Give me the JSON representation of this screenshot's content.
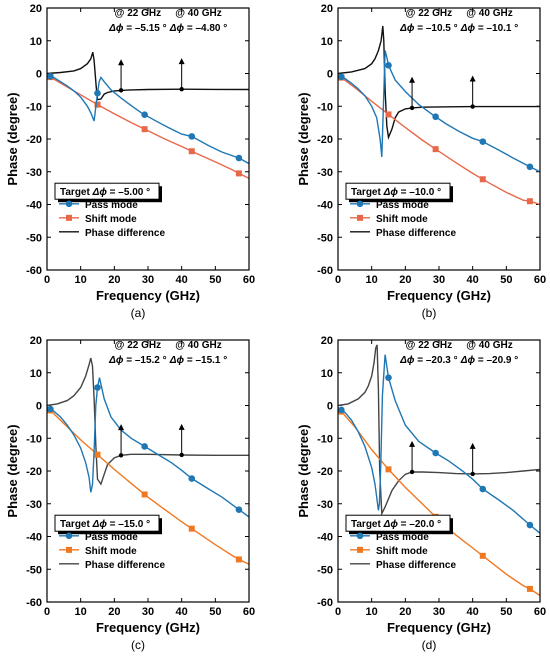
{
  "chart_data": [
    {
      "type": "line",
      "panel_label": "(a)",
      "xlabel": "Frequency (GHz)",
      "ylabel": "Phase (degree)",
      "xlim": [
        0,
        60
      ],
      "ylim": [
        -60,
        20
      ],
      "xticks": [
        0,
        10,
        20,
        30,
        40,
        50,
        60
      ],
      "yticks": [
        20,
        10,
        0,
        -10,
        -20,
        -30,
        -40,
        -50,
        -60
      ],
      "target_prefix": "Target ",
      "target_symbol": "Δϕ",
      "target_value": " = –5.00 °",
      "legend": [
        "Pass mode",
        "Shift mode",
        "Phase difference"
      ],
      "annotations": [
        {
          "freq_label": "@ 22 GHz",
          "symbol": "Δϕ",
          "value": " = –5.15 °",
          "x": 22,
          "y": -5.15
        },
        {
          "freq_label": "@ 40 GHz",
          "symbol": "Δϕ",
          "value": " = –4.80 °",
          "x": 40,
          "y": -4.8
        }
      ],
      "colors": {
        "pass": "#1f77b4",
        "shift": "#e8684a",
        "diff": "#111111"
      },
      "series": [
        {
          "name": "Pass mode",
          "x": [
            0,
            2,
            4,
            6,
            8,
            10,
            12,
            13,
            14,
            15,
            15.5,
            16,
            17,
            19,
            22,
            25,
            28,
            32,
            36,
            40,
            43,
            48,
            52,
            57,
            60
          ],
          "y": [
            -0.5,
            -1.2,
            -2.5,
            -3.8,
            -5.3,
            -7.2,
            -10,
            -12,
            -14.5,
            -6,
            -2.5,
            -1.2,
            -2.5,
            -5,
            -7.5,
            -9.8,
            -12,
            -14.3,
            -16.5,
            -18.5,
            -19.2,
            -22,
            -24,
            -25.8,
            -27.5
          ],
          "markers_x": [
            1,
            15,
            29,
            43,
            57
          ]
        },
        {
          "name": "Shift mode",
          "x": [
            0,
            5,
            10,
            15,
            20,
            25,
            30,
            35,
            40,
            45,
            50,
            55,
            57,
            60
          ],
          "y": [
            -0.5,
            -3.5,
            -6.5,
            -9.5,
            -12.3,
            -15,
            -17.5,
            -20,
            -22.3,
            -24.7,
            -27,
            -29.4,
            -30.5,
            -32
          ],
          "markers_x": [
            1,
            15,
            29,
            43,
            57
          ]
        },
        {
          "name": "Phase difference",
          "x": [
            0,
            4,
            8,
            10,
            12,
            13,
            13.6,
            14,
            14.6,
            15,
            16,
            17,
            18,
            20,
            22,
            25,
            30,
            40,
            50,
            60
          ],
          "y": [
            0,
            0.3,
            0.8,
            1.5,
            3,
            4.5,
            6.5,
            4,
            -4,
            -8,
            -7.8,
            -6.3,
            -5.8,
            -5.3,
            -5.15,
            -5,
            -4.9,
            -4.8,
            -4.85,
            -4.9
          ],
          "markers_x": [
            22,
            40
          ]
        }
      ]
    },
    {
      "type": "line",
      "panel_label": "(b)",
      "xlabel": "Frequency (GHz)",
      "ylabel": "Phase (degree)",
      "xlim": [
        0,
        60
      ],
      "ylim": [
        -60,
        20
      ],
      "xticks": [
        0,
        10,
        20,
        30,
        40,
        50,
        60
      ],
      "yticks": [
        20,
        10,
        0,
        -10,
        -20,
        -30,
        -40,
        -50,
        -60
      ],
      "target_prefix": "Target ",
      "target_symbol": "Δϕ",
      "target_value": " = –10.0 °",
      "legend": [
        "Pass mode",
        "Shift mode",
        "Phase difference"
      ],
      "annotations": [
        {
          "freq_label": "@ 22 GHz",
          "symbol": "Δϕ",
          "value": " = –10.5 °",
          "x": 22,
          "y": -10.5
        },
        {
          "freq_label": "@ 40 GHz",
          "symbol": "Δϕ",
          "value": " = –10.1 °",
          "x": 40,
          "y": -10.1
        }
      ],
      "colors": {
        "pass": "#1f77b4",
        "shift": "#e8684a",
        "diff": "#111111"
      },
      "series": [
        {
          "name": "Pass mode",
          "x": [
            0,
            2,
            4,
            6,
            8,
            10,
            11.5,
            12.5,
            13,
            13.5,
            14,
            14.5,
            15,
            17,
            20,
            24,
            28,
            32,
            36,
            40,
            43,
            48,
            52,
            57,
            60
          ],
          "y": [
            -0.5,
            -1.5,
            -3,
            -4.7,
            -6.8,
            -10,
            -13.5,
            -20,
            -25.5,
            -10,
            7,
            5,
            2.5,
            -2,
            -5.5,
            -9.5,
            -12.5,
            -15.3,
            -17.7,
            -19.8,
            -20.8,
            -23.5,
            -25.8,
            -28.5,
            -30
          ],
          "markers_x": [
            1,
            15,
            29,
            43,
            57
          ]
        },
        {
          "name": "Shift mode",
          "x": [
            0,
            5,
            10,
            15,
            20,
            25,
            30,
            35,
            40,
            45,
            50,
            55,
            57,
            60
          ],
          "y": [
            -0.5,
            -4.3,
            -8.5,
            -12.5,
            -16.5,
            -20.3,
            -23.8,
            -27.2,
            -30.5,
            -33.5,
            -36.3,
            -38.7,
            -39,
            -40
          ],
          "markers_x": [
            1,
            15,
            29,
            43,
            57
          ]
        },
        {
          "name": "Phase difference",
          "x": [
            0,
            4,
            8,
            10,
            11,
            12,
            12.8,
            13.3,
            13.6,
            14,
            14.5,
            15,
            16,
            17,
            18,
            20,
            22,
            25,
            30,
            40,
            50,
            60
          ],
          "y": [
            0,
            0.5,
            1.5,
            3,
            4.5,
            7,
            10,
            14.5,
            10,
            -5,
            -16,
            -19.5,
            -17,
            -13.5,
            -11.8,
            -10.8,
            -10.5,
            -10.3,
            -10.2,
            -10.1,
            -10.1,
            -10.1
          ],
          "markers_x": [
            22,
            40
          ]
        }
      ]
    },
    {
      "type": "line",
      "panel_label": "(c)",
      "xlabel": "Frequency (GHz)",
      "ylabel": "Phase (degree)",
      "xlim": [
        0,
        60
      ],
      "ylim": [
        -60,
        20
      ],
      "xticks": [
        0,
        10,
        20,
        30,
        40,
        50,
        60
      ],
      "yticks": [
        20,
        10,
        0,
        -10,
        -20,
        -30,
        -40,
        -50,
        -60
      ],
      "target_prefix": "Target ",
      "target_symbol": "Δϕ",
      "target_value": " = –15.0 °",
      "legend": [
        "Pass mode",
        "Shift mode",
        "Phase difference"
      ],
      "annotations": [
        {
          "freq_label": "@ 22 GHz",
          "symbol": "Δϕ",
          "value": " = –15.2 °",
          "x": 22,
          "y": -15.2
        },
        {
          "freq_label": "@ 40 GHz",
          "symbol": "Δϕ",
          "value": " = –15.1 °",
          "x": 40,
          "y": -15.1
        }
      ],
      "colors": {
        "pass": "#1f77b4",
        "shift": "#f07820",
        "diff": "#444444"
      },
      "series": [
        {
          "name": "Pass mode",
          "x": [
            0,
            2,
            4,
            6,
            8,
            10,
            11.5,
            12.5,
            13,
            13.5,
            14,
            14.5,
            15,
            15.6,
            17,
            19,
            22,
            25,
            29,
            33,
            37,
            40,
            43,
            48,
            52,
            57,
            60
          ],
          "y": [
            -0.5,
            -1.7,
            -3.5,
            -6,
            -9,
            -13,
            -17.5,
            -22,
            -26.5,
            -24,
            -14,
            0,
            5.5,
            8.5,
            2,
            -3.5,
            -7.5,
            -10,
            -12.5,
            -15,
            -17.5,
            -19.8,
            -22.3,
            -25.5,
            -28,
            -31.8,
            -34
          ],
          "markers_x": [
            1,
            15,
            29,
            43,
            57
          ]
        },
        {
          "name": "Shift mode",
          "x": [
            0,
            5,
            10,
            15,
            20,
            25,
            30,
            35,
            40,
            45,
            50,
            55,
            57,
            60
          ],
          "y": [
            -0.5,
            -5.5,
            -10.5,
            -15,
            -19.5,
            -23.8,
            -28,
            -31.8,
            -35.5,
            -39,
            -42.5,
            -45.8,
            -47,
            -48.5
          ],
          "markers_x": [
            1,
            15,
            29,
            43,
            57
          ]
        },
        {
          "name": "Phase difference",
          "x": [
            0,
            3,
            6,
            8,
            10,
            11.5,
            12.5,
            13,
            13.5,
            14,
            14.5,
            15,
            16,
            17,
            18,
            20,
            22,
            25,
            30,
            40,
            50,
            60
          ],
          "y": [
            0,
            0.5,
            1.5,
            3,
            5.5,
            9,
            12.5,
            14.5,
            12,
            2,
            -12,
            -22.5,
            -24,
            -21,
            -18,
            -16,
            -15.2,
            -14.9,
            -14.9,
            -15.1,
            -15.2,
            -15.2
          ],
          "markers_x": [
            22,
            40
          ]
        }
      ]
    },
    {
      "type": "line",
      "panel_label": "(d)",
      "xlabel": "Frequency (GHz)",
      "ylabel": "Phase (degree)",
      "xlim": [
        0,
        60
      ],
      "ylim": [
        -60,
        20
      ],
      "xticks": [
        0,
        10,
        20,
        30,
        40,
        50,
        60
      ],
      "yticks": [
        20,
        10,
        0,
        -10,
        -20,
        -30,
        -40,
        -50,
        -60
      ],
      "target_prefix": "Target ",
      "target_symbol": "Δϕ",
      "target_value": " = –20.0 °",
      "legend": [
        "Pass mode",
        "Shift mode",
        "Phase difference"
      ],
      "annotations": [
        {
          "freq_label": "@ 22 GHz",
          "symbol": "Δϕ",
          "value": " = –20.3 °",
          "x": 22,
          "y": -20.3
        },
        {
          "freq_label": "@ 40 GHz",
          "symbol": "Δϕ",
          "value": " = –20.9 °",
          "x": 40,
          "y": -20.9
        }
      ],
      "colors": {
        "pass": "#1f77b4",
        "shift": "#f07820",
        "diff": "#444444"
      },
      "series": [
        {
          "name": "Pass mode",
          "x": [
            0,
            2,
            4,
            6,
            8,
            10,
            11,
            11.5,
            12,
            12.3,
            12.7,
            13.2,
            14,
            15,
            17,
            20,
            24,
            29,
            33,
            37,
            40,
            43,
            48,
            52,
            57,
            60
          ],
          "y": [
            -0.7,
            -2,
            -4.5,
            -8,
            -12.5,
            -19,
            -24,
            -28,
            -32,
            -30,
            -18,
            3,
            15.5,
            8.5,
            1.5,
            -6,
            -11,
            -14.5,
            -17,
            -20,
            -22.5,
            -25.5,
            -29,
            -32,
            -36.5,
            -39
          ],
          "markers_x": [
            1,
            15,
            29,
            43,
            57
          ]
        },
        {
          "name": "Shift mode",
          "x": [
            0,
            5,
            10,
            15,
            20,
            25,
            30,
            35,
            40,
            45,
            50,
            55,
            57,
            60
          ],
          "y": [
            -0.7,
            -6.5,
            -13.5,
            -19.5,
            -25,
            -30,
            -35,
            -39.5,
            -43.5,
            -47.5,
            -51.5,
            -55,
            -56,
            -58
          ],
          "markers_x": [
            1,
            15,
            29,
            43,
            57
          ]
        },
        {
          "name": "Phase difference",
          "x": [
            0,
            3,
            6,
            8,
            9,
            10,
            10.7,
            11.2,
            11.6,
            12,
            12.4,
            13,
            14,
            16,
            18,
            20,
            22,
            25,
            30,
            35,
            40,
            45,
            50,
            55,
            60
          ],
          "y": [
            0,
            0.5,
            2,
            4,
            6,
            9,
            13,
            17.5,
            18.5,
            5,
            -20,
            -33,
            -31,
            -26,
            -23,
            -21,
            -20.3,
            -20.3,
            -20.5,
            -20.8,
            -20.9,
            -20.8,
            -20.5,
            -20,
            -19.5
          ],
          "markers_x": [
            22,
            40
          ]
        }
      ]
    }
  ]
}
